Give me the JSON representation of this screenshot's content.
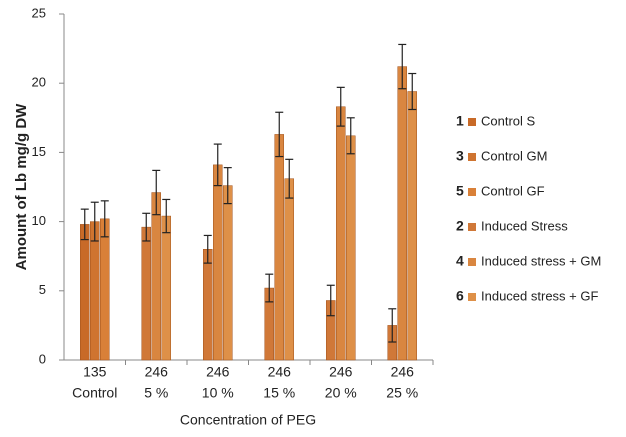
{
  "chart_data": {
    "type": "bar",
    "ylabel": "Amount of Lb mg/g DW",
    "xlabel": "Concentration of PEG",
    "categories": [
      "Control",
      "5 %",
      "10 %",
      "15 %",
      "20 %",
      "25 %"
    ],
    "group_labels": [
      "135",
      "246",
      "246",
      "246",
      "246",
      "246"
    ],
    "series": [
      {
        "key": "1",
        "name": "Control S",
        "color": "#c86a28",
        "values": [
          9.8,
          null,
          null,
          null,
          null,
          null
        ],
        "errors": [
          1.1,
          null,
          null,
          null,
          null,
          null
        ]
      },
      {
        "key": "3",
        "name": "Control GM",
        "color": "#cf7430",
        "values": [
          10.0,
          null,
          null,
          null,
          null,
          null
        ],
        "errors": [
          1.4,
          null,
          null,
          null,
          null,
          null
        ]
      },
      {
        "key": "5",
        "name": "Control GF",
        "color": "#d98038",
        "values": [
          10.2,
          null,
          null,
          null,
          null,
          null
        ],
        "errors": [
          1.3,
          null,
          null,
          null,
          null,
          null
        ]
      },
      {
        "key": "2",
        "name": "Induced Stress",
        "color": "#d07838",
        "values": [
          null,
          9.6,
          8.0,
          5.2,
          4.3,
          2.5
        ],
        "errors": [
          null,
          1.0,
          1.0,
          1.0,
          1.1,
          1.2
        ]
      },
      {
        "key": "4",
        "name": "Induced stress + GM",
        "color": "#d98640",
        "values": [
          null,
          12.1,
          14.1,
          16.3,
          18.3,
          21.2
        ],
        "errors": [
          null,
          1.6,
          1.5,
          1.6,
          1.4,
          1.6
        ]
      },
      {
        "key": "6",
        "name": "Induced stress + GF",
        "color": "#de9048",
        "values": [
          null,
          10.4,
          12.6,
          13.1,
          16.2,
          19.4
        ],
        "errors": [
          null,
          1.2,
          1.3,
          1.4,
          1.3,
          1.3
        ]
      }
    ],
    "ylim": [
      0,
      25
    ],
    "yticks": [
      0,
      5,
      10,
      15,
      20,
      25
    ],
    "grid": false,
    "legend": "right"
  }
}
